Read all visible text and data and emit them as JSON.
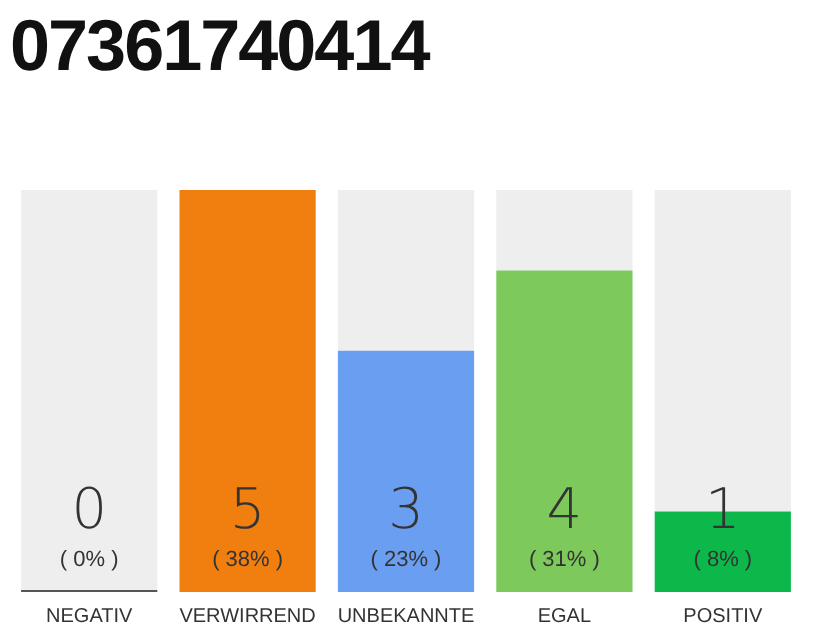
{
  "chart_data": {
    "type": "bar",
    "title": "07361740414",
    "categories": [
      "NEGATIV",
      "VERWIRREND",
      "UNBEKANNTE",
      "EGAL",
      "POSITIV"
    ],
    "stacked": true,
    "series": [
      {
        "values": [
          0,
          5,
          3,
          4,
          1
        ],
        "colors": [
          "#555555",
          "#f07f10",
          "#6a9ef0",
          "#7dc95c",
          "#0db84b"
        ],
        "value_labels": [
          "0",
          "5",
          "3",
          "4",
          "1"
        ]
      },
      {
        "values": [
          5,
          0,
          2,
          1,
          4
        ],
        "color": "#eeeeee"
      }
    ],
    "annotations": [
      "( 0% )",
      "( 38% )",
      "( 23% )",
      "( 31% )",
      "( 8% )"
    ],
    "tick_labels": "x",
    "grid": false,
    "legend": false
  }
}
